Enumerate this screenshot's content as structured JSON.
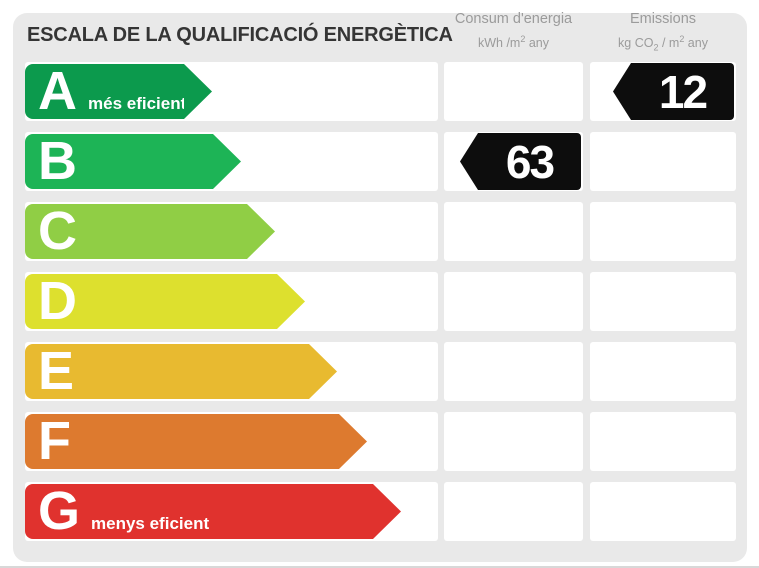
{
  "title": "ESCALA DE LA QUALIFICACIÓ ENERGÈTICA",
  "columns": {
    "consum": {
      "line1": "Consum d'energia",
      "unit": {
        "pre": "kWh /m",
        "sup": "2",
        "post": " any"
      }
    },
    "emissions": {
      "line1": "Emissions",
      "unit": {
        "pre": "kg CO",
        "sub": "2",
        "mid": " / m",
        "sup": "2",
        "post": " any"
      }
    }
  },
  "scale": {
    "rows": [
      {
        "grade": "A",
        "note": "més eficient",
        "color": "#0c9a4d",
        "consum": "",
        "emissions": "12"
      },
      {
        "grade": "B",
        "note": "",
        "color": "#1db456",
        "consum": "63",
        "emissions": ""
      },
      {
        "grade": "C",
        "note": "",
        "color": "#90ce45",
        "consum": "",
        "emissions": ""
      },
      {
        "grade": "D",
        "note": "",
        "color": "#dde02e",
        "consum": "",
        "emissions": ""
      },
      {
        "grade": "E",
        "note": "",
        "color": "#e8ba30",
        "consum": "",
        "emissions": ""
      },
      {
        "grade": "F",
        "note": "",
        "color": "#dd7a2f",
        "consum": "",
        "emissions": ""
      },
      {
        "grade": "G",
        "note": "menys eficient",
        "color": "#e0322e",
        "consum": "",
        "emissions": ""
      }
    ]
  },
  "values": {
    "consum_value": "63",
    "consum_grade": "B",
    "emissions_value": "12",
    "emissions_grade": "A"
  },
  "colors": {
    "panel_background": "#e9e9e9",
    "cell_background": "#ffffff",
    "value_arrow": "#0d0d0d",
    "title_text": "#353535",
    "header_text": "#9b9b9b"
  },
  "chart_data": {
    "type": "bar",
    "title": "ESCALA DE LA QUALIFICACIÓ ENERGÈTICA",
    "categories": [
      "A",
      "B",
      "C",
      "D",
      "E",
      "F",
      "G"
    ],
    "category_colors": [
      "#0c9a4d",
      "#1db456",
      "#90ce45",
      "#dde02e",
      "#e8ba30",
      "#dd7a2f",
      "#e0322e"
    ],
    "category_notes": [
      "més eficient",
      "",
      "",
      "",
      "",
      "",
      "menys eficient"
    ],
    "series": [
      {
        "name": "Consum d'energia (kWh/m² any)",
        "grade": "B",
        "value": 63
      },
      {
        "name": "Emissions (kg CO₂/m² any)",
        "grade": "A",
        "value": 12
      }
    ],
    "layout": "horizontal energy-rating scale, arrow length increases from A to G, value badges are black left-pointing arrows in their grade row"
  }
}
